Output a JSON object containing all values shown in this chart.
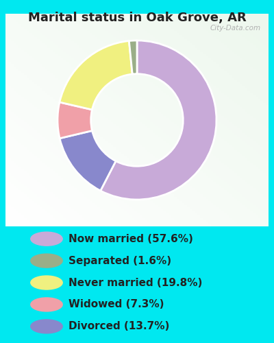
{
  "title": "Marital status in Oak Grove, AR",
  "slices": [
    57.6,
    1.6,
    19.8,
    7.3,
    13.7
  ],
  "labels": [
    "Now married (57.6%)",
    "Separated (1.6%)",
    "Never married (19.8%)",
    "Widowed (7.3%)",
    "Divorced (13.7%)"
  ],
  "colors": [
    "#c8aad8",
    "#9aae88",
    "#f0f080",
    "#f0a0a8",
    "#8888cc"
  ],
  "bg_color": "#00e8f0",
  "chart_bg_color_topleft": "#e8f8f0",
  "chart_bg_color_bottomright": "#d0ecd8",
  "title_fontsize": 13,
  "watermark": "City-Data.com",
  "legend_circle_size": 12,
  "legend_fontsize": 11,
  "donut_order": [
    0,
    4,
    3,
    2,
    1
  ],
  "startangle": 90
}
